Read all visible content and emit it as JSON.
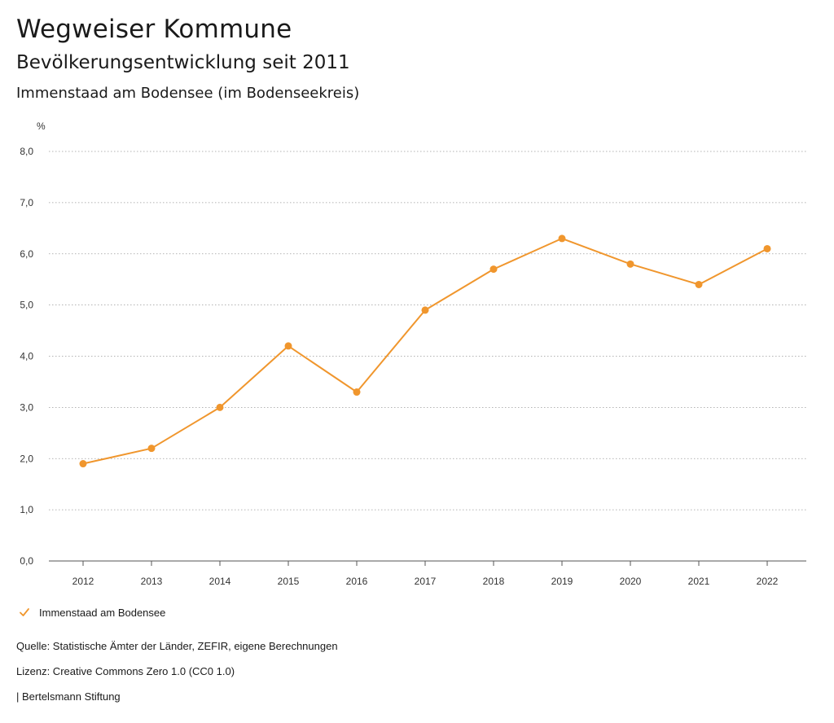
{
  "header": {
    "title": "Wegweiser Kommune",
    "subtitle": "Bevölkerungsentwicklung seit 2011",
    "region": "Immenstaad am Bodensee (im Bodenseekreis)"
  },
  "chart_data": {
    "type": "line",
    "ylabel": "%",
    "x": [
      "2012",
      "2013",
      "2014",
      "2015",
      "2016",
      "2017",
      "2018",
      "2019",
      "2020",
      "2021",
      "2022"
    ],
    "series": [
      {
        "name": "Immenstaad am Bodensee",
        "values": [
          1.9,
          2.2,
          3.0,
          4.2,
          3.3,
          4.9,
          5.7,
          6.3,
          5.8,
          5.4,
          6.1
        ],
        "color": "#f0962d"
      }
    ],
    "ylim": [
      0,
      8
    ],
    "yticks": [
      "0,0",
      "1,0",
      "2,0",
      "3,0",
      "4,0",
      "5,0",
      "6,0",
      "7,0",
      "8,0"
    ],
    "grid": true,
    "legend_position": "bottom-left"
  },
  "footer": {
    "source": "Quelle: Statistische Ämter der Länder, ZEFIR, eigene Berechnungen",
    "license": "Lizenz: Creative Commons Zero 1.0 (CC0 1.0)",
    "org": "| Bertelsmann Stiftung"
  }
}
